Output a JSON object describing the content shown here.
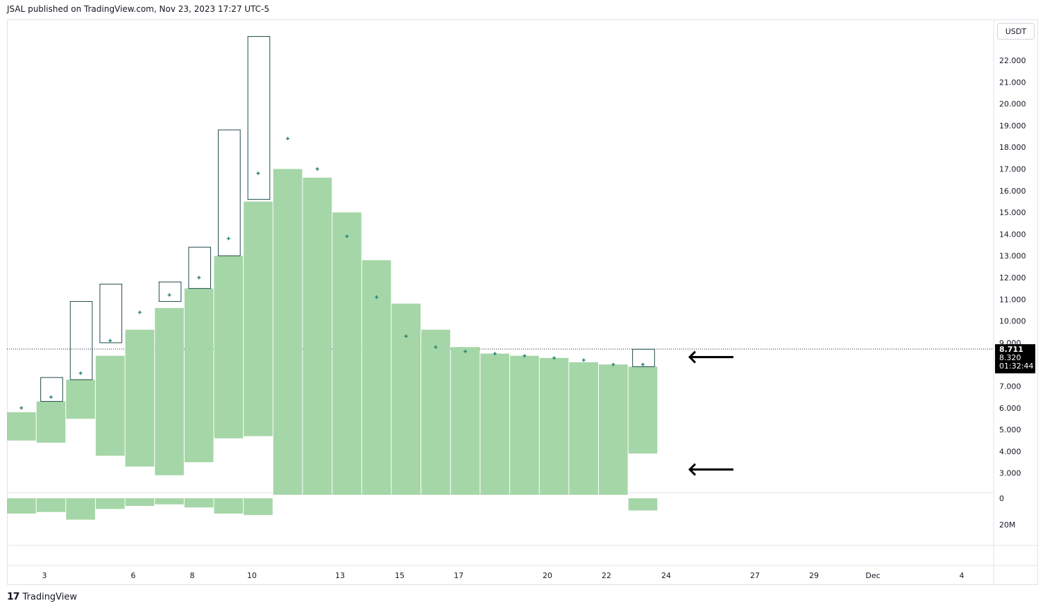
{
  "header": {
    "text": "JSAL published on TradingView.com, Nov 23, 2023 17:27 UTC-5"
  },
  "brand": {
    "logo": "17",
    "name": "TradingView"
  },
  "price_axis": {
    "currency": "USDT",
    "last_price": "8.711",
    "secondary_price": "8.320",
    "countdown": "01:32:44"
  },
  "arrows": {
    "upper": "🡐",
    "lower": "🡐"
  },
  "colors": {
    "bar": "#a5d6a7",
    "outline": "#1e4a4a",
    "marker": "#26806e",
    "grid": "#e0e3eb"
  },
  "chart_data": {
    "type": "bar",
    "ylim": [
      2.0,
      23.0
    ],
    "yticks": [
      "22.000",
      "21.000",
      "20.000",
      "19.000",
      "18.000",
      "17.000",
      "16.000",
      "15.000",
      "14.000",
      "13.000",
      "12.000",
      "11.000",
      "10.000",
      "9.000",
      "7.000",
      "6.000",
      "5.000",
      "4.000",
      "3.000"
    ],
    "ytick_values": [
      22,
      21,
      20,
      19,
      18,
      17,
      16,
      15,
      14,
      13,
      12,
      11,
      10,
      9,
      7,
      6,
      5,
      4,
      3
    ],
    "xticks": [
      "3",
      "6",
      "8",
      "10",
      "13",
      "15",
      "17",
      "20",
      "22",
      "24",
      "27",
      "29",
      "Dec",
      "4"
    ],
    "volume_ticks": [
      "0",
      "20M"
    ],
    "last_price_line": 8.711,
    "bars": [
      {
        "body_low": 4.5,
        "body_high": 5.8,
        "marker": 6.0
      },
      {
        "body_low": 4.4,
        "body_high": 6.3,
        "marker": 6.5,
        "outline_high": 7.4
      },
      {
        "body_low": 5.5,
        "body_high": 7.3,
        "marker": 7.6,
        "outline_high": 10.9
      },
      {
        "body_low": 3.8,
        "body_high": 8.4,
        "marker": 9.1,
        "outline_low": 9.0,
        "outline_high": 11.7
      },
      {
        "body_low": 3.3,
        "body_high": 9.6,
        "marker": 10.4
      },
      {
        "body_low": 2.9,
        "body_high": 10.6,
        "marker": 11.2,
        "outline_low": 10.9,
        "outline_high": 11.8
      },
      {
        "body_low": 3.5,
        "body_high": 11.5,
        "marker": 12.0,
        "outline_high": 13.4
      },
      {
        "body_low": 4.6,
        "body_high": 13.0,
        "marker": 13.8,
        "outline_high": 18.8
      },
      {
        "body_low": 4.7,
        "body_high": 15.5,
        "marker": 16.8,
        "outline_low": 15.6,
        "outline_high": 23.1
      },
      {
        "body_low": 2.0,
        "body_high": 17.0,
        "marker": 18.4
      },
      {
        "body_low": 2.0,
        "body_high": 16.6,
        "marker": 17.0
      },
      {
        "body_low": 2.0,
        "body_high": 15.0,
        "marker": 13.9
      },
      {
        "body_low": 2.0,
        "body_high": 12.8,
        "marker": 11.1
      },
      {
        "body_low": 2.0,
        "body_high": 10.8,
        "marker": 9.3
      },
      {
        "body_low": 2.0,
        "body_high": 9.6,
        "marker": 8.8
      },
      {
        "body_low": 2.0,
        "body_high": 8.8,
        "marker": 8.6
      },
      {
        "body_low": 2.0,
        "body_high": 8.5,
        "marker": 8.5
      },
      {
        "body_low": 2.0,
        "body_high": 8.4,
        "marker": 8.4
      },
      {
        "body_low": 2.0,
        "body_high": 8.3,
        "marker": 8.3
      },
      {
        "body_low": 2.0,
        "body_high": 8.1,
        "marker": 8.2
      },
      {
        "body_low": 2.0,
        "body_high": 8.0,
        "marker": 8.0
      },
      {
        "body_low": 3.9,
        "body_high": 7.9,
        "marker": 8.0,
        "outline_high": 8.7
      }
    ],
    "volume": [
      10,
      9,
      14,
      7,
      5,
      4,
      6,
      10,
      11,
      0,
      0,
      0,
      0,
      0,
      0,
      0,
      0,
      0,
      0,
      0,
      0,
      8
    ]
  }
}
